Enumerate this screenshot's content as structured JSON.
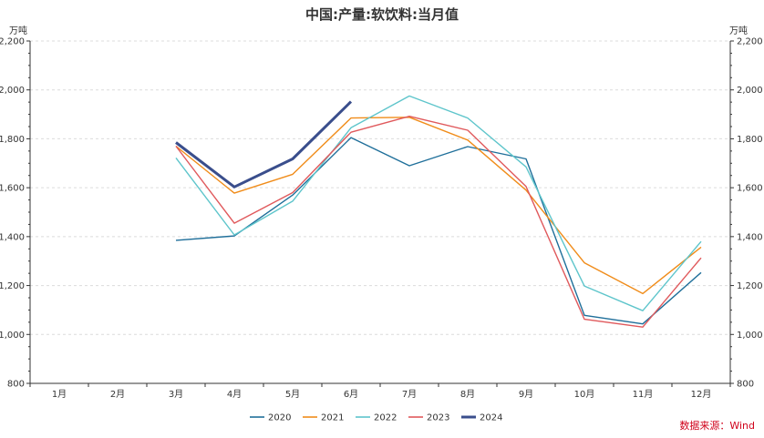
{
  "chart_data": {
    "type": "line",
    "title": "中国:产量:软饮料:当月值",
    "unit_left": "万吨",
    "unit_right": "万吨",
    "source": "数据来源：Wind",
    "categories": [
      "1月",
      "2月",
      "3月",
      "4月",
      "5月",
      "6月",
      "7月",
      "8月",
      "9月",
      "10月",
      "11月",
      "12月"
    ],
    "ylim": [
      800,
      2200
    ],
    "yticks": [
      800,
      1000,
      1200,
      1400,
      1600,
      1800,
      2000,
      2200
    ],
    "ytick_labels": [
      "800",
      "1,000",
      "1,200",
      "1,400",
      "1,600",
      "1,800",
      "2,000",
      "2,200"
    ],
    "grid": true,
    "legend_position": "bottom",
    "series": [
      {
        "name": "2020",
        "color": "#1f6f9a",
        "values": [
          null,
          null,
          1385,
          1403,
          1570,
          1805,
          1690,
          1768,
          1718,
          1078,
          1043,
          1253
        ]
      },
      {
        "name": "2021",
        "color": "#f08c1a",
        "values": [
          null,
          null,
          1770,
          1578,
          1655,
          1885,
          1888,
          1795,
          1590,
          1293,
          1167,
          1357
        ]
      },
      {
        "name": "2022",
        "color": "#5ec5cb",
        "values": [
          null,
          null,
          1722,
          1407,
          1545,
          1845,
          1975,
          1885,
          1685,
          1198,
          1097,
          1380
        ]
      },
      {
        "name": "2023",
        "color": "#e0595c",
        "values": [
          null,
          null,
          1770,
          1455,
          1580,
          1827,
          1892,
          1835,
          1605,
          1062,
          1030,
          1313
        ]
      },
      {
        "name": "2024",
        "color": "#3a4e8c",
        "values": [
          null,
          null,
          1785,
          1603,
          1718,
          1952,
          null,
          null,
          null,
          null,
          null,
          null
        ]
      }
    ]
  }
}
